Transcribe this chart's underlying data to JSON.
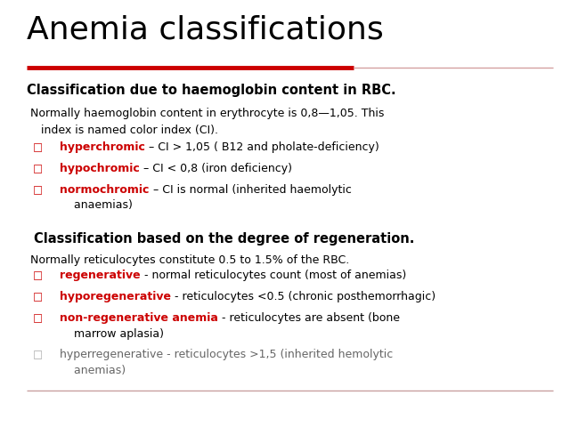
{
  "title": "Anemia classifications",
  "bg_color": "#ffffff",
  "title_color": "#000000",
  "title_fontsize": 26,
  "red_line_color": "#cc0000",
  "pink_line_color": "#d4a0a0",
  "bottom_line_color": "#c8a0a0",
  "section1_header": "Classification due to haemoglobin content in RBC.",
  "section1_intro_line1": " Normally haemoglobin content in erythrocyte is 0,8—1,05. This",
  "section1_intro_line2": "    index is named color index (CI).",
  "section1_bullets": [
    {
      "bold": "hyperchromic",
      "rest": " – CI > 1,05 ( B12 and pholate-deficiency)",
      "bold_color": "#cc0000",
      "rest_color": "#000000"
    },
    {
      "bold": "hypochromic",
      "rest": " – CI < 0,8 (iron deficiency)",
      "bold_color": "#cc0000",
      "rest_color": "#000000"
    },
    {
      "bold": "normochromic",
      "rest": " – CI is normal (inherited haemolytic",
      "rest2": "    anaemias)",
      "bold_color": "#cc0000",
      "rest_color": "#000000"
    }
  ],
  "section2_header": "Classification based on the degree of regeneration.",
  "section2_intro": " Normally reticulocytes constitute 0.5 to 1.5% of the RBC.",
  "section2_bullets": [
    {
      "bold": "regenerative",
      "rest": " - normal reticulocytes count (most of anemias)",
      "bold_color": "#cc0000",
      "rest_color": "#000000"
    },
    {
      "bold": "hyporegenerative",
      "rest": " - reticulocytes <0.5 (chronic posthemorrhagic)",
      "bold_color": "#cc0000",
      "rest_color": "#000000"
    },
    {
      "bold": "non-regenerative anemia",
      "rest": " - reticulocytes are absent (bone",
      "rest2": "    marrow aplasia)",
      "bold_color": "#cc0000",
      "rest_color": "#000000"
    },
    {
      "bold": "",
      "rest": "hyperregenerative - reticulocytes >1,5 (inherited hemolytic",
      "rest2": "    anemias)",
      "bold_color": "#aaaaaa",
      "rest_color": "#666666"
    }
  ],
  "bullet_char": "□",
  "font_size_body": 9.0,
  "font_size_header": 10.5
}
